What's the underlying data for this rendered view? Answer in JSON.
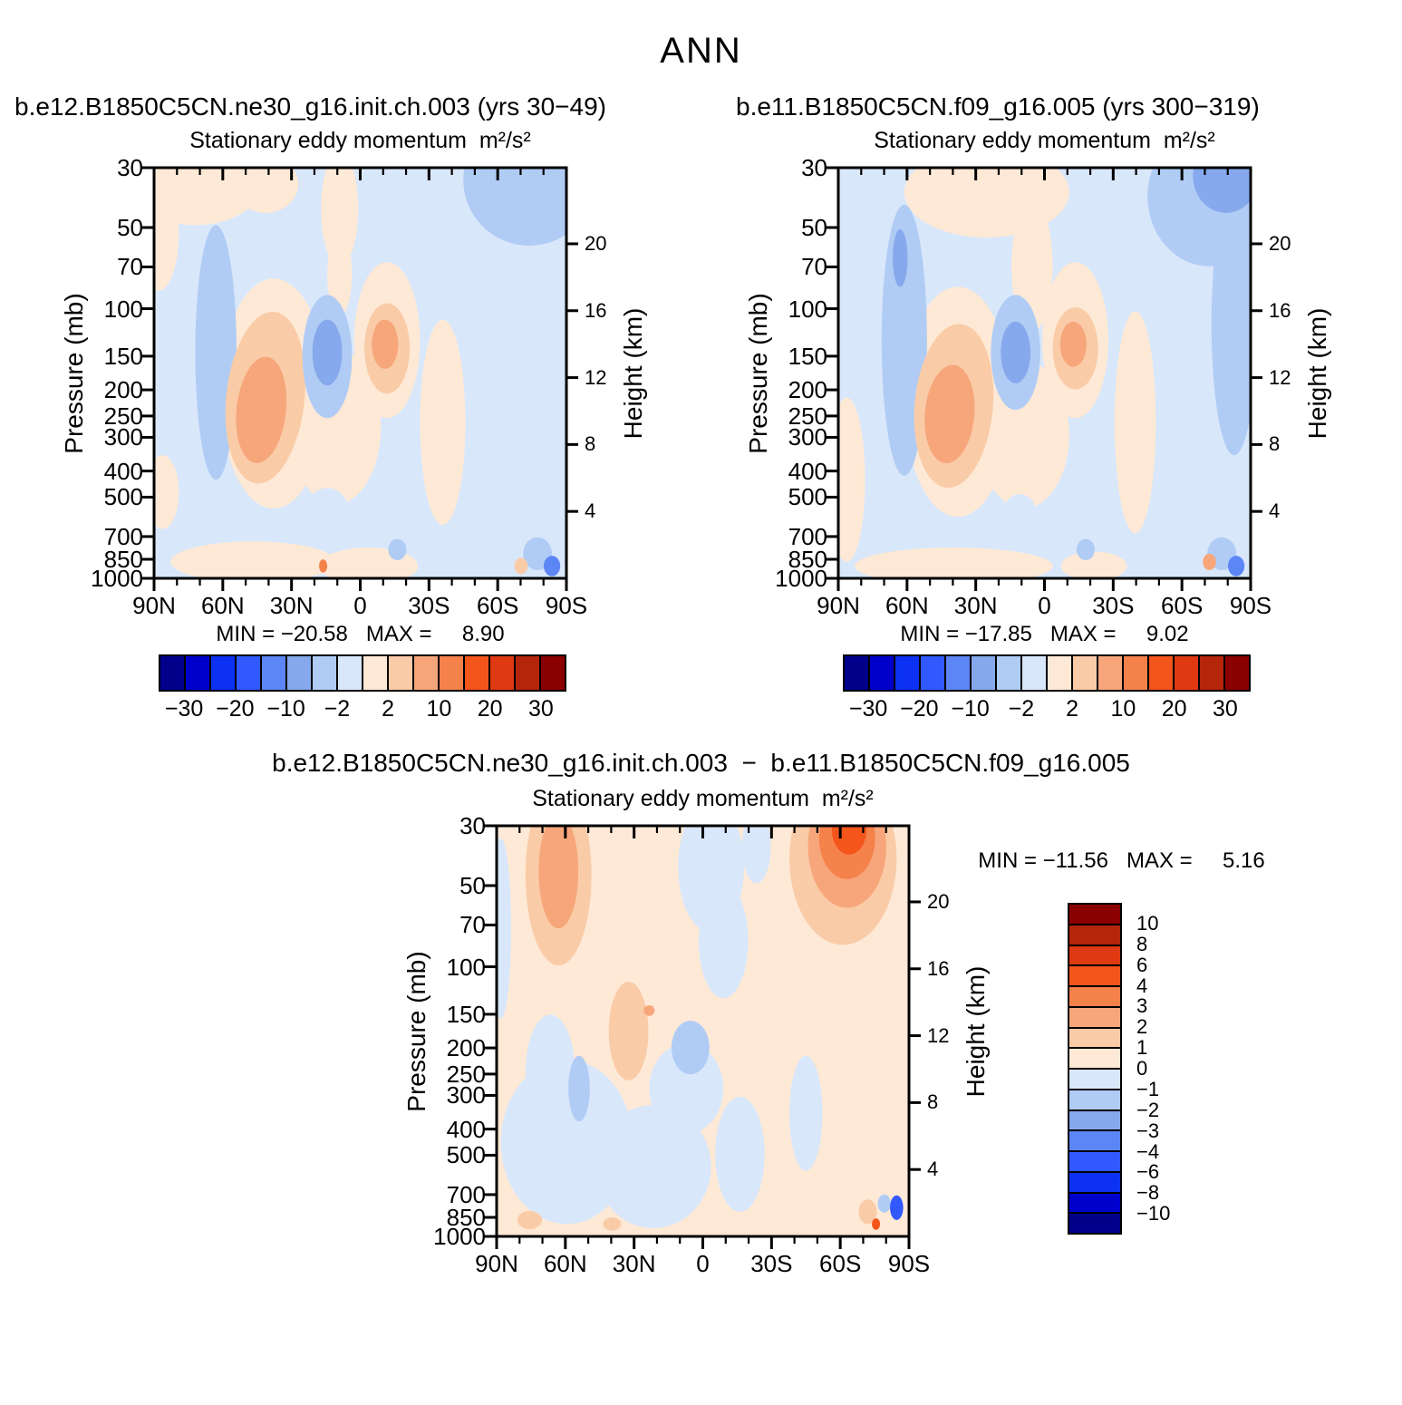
{
  "chart_data": {
    "type": "contour",
    "suptitle": "ANN",
    "palette": [
      "#00008B",
      "#0000CD",
      "#0D31F2",
      "#3159FF",
      "#5C85F6",
      "#86A8EC",
      "#B0CCF5",
      "#D9E7FA",
      "#FDE9D6",
      "#FACBA7",
      "#F7A67B",
      "#F5814B",
      "#F4551B",
      "#DE3911",
      "#B42509",
      "#8B0000"
    ],
    "levels_main": [
      -30,
      -25,
      -20,
      -15,
      -10,
      -5,
      -2,
      0,
      2,
      5,
      10,
      15,
      20,
      25,
      30
    ],
    "levels_diff": [
      -10,
      -8,
      -6,
      -4,
      -3,
      -2,
      -1,
      0,
      1,
      2,
      3,
      4,
      6,
      8,
      10
    ],
    "axes": {
      "pressure_label": "Pressure (mb)",
      "pressure_ticks": [
        30,
        50,
        70,
        100,
        150,
        200,
        250,
        300,
        400,
        500,
        700,
        850,
        1000
      ],
      "pressure_scale": "log",
      "height_label": "Height (km)",
      "height_ticks": [
        20,
        16,
        12,
        8,
        4
      ],
      "lat_labels": [
        "90N",
        "60N",
        "30N",
        "0",
        "30S",
        "60S",
        "90S"
      ],
      "lat_minor_step_deg": 10
    },
    "colorbar_h_labels": [
      "−30",
      "−20",
      "−10",
      "−2",
      "2",
      "10",
      "20",
      "30"
    ],
    "colorbar_v_labels": [
      "10",
      "8",
      "6",
      "4",
      "3",
      "2",
      "1",
      "0",
      "−1",
      "−2",
      "−3",
      "−4",
      "−6",
      "−8",
      "−10"
    ],
    "panels": [
      {
        "key": "case1",
        "header": "b.e12.B1850C5CN.ne30_g16.init.ch.003 (yrs 30−49)",
        "subtitle": "Stationary eddy momentum  m²/s²",
        "min": -20.58,
        "max": 8.9,
        "min_max_text": "MIN = −20.58   MAX =     8.90",
        "bg": 7,
        "blobs": [
          [
            10,
            4,
            16,
            10,
            8,
            0
          ],
          [
            1,
            16,
            5,
            14,
            8,
            0
          ],
          [
            27,
            4,
            8,
            7,
            8,
            0
          ],
          [
            45,
            10,
            4.5,
            14,
            8,
            0
          ],
          [
            45,
            26,
            3,
            10,
            8,
            0
          ],
          [
            29,
            55,
            13,
            28,
            8,
            0
          ],
          [
            44,
            63,
            11,
            19,
            8,
            0
          ],
          [
            56.5,
            42,
            8,
            19,
            8,
            0
          ],
          [
            70,
            62,
            5.5,
            25,
            8,
            0
          ],
          [
            24,
            96,
            20,
            5,
            8,
            0
          ],
          [
            52,
            97,
            12,
            4.5,
            8,
            0
          ],
          [
            2,
            79,
            4,
            9,
            8,
            0
          ],
          [
            15,
            45,
            5,
            31,
            6,
            0
          ],
          [
            91,
            3,
            16,
            16,
            6,
            0
          ],
          [
            27,
            56,
            9.5,
            21,
            9,
            6
          ],
          [
            26,
            59,
            6,
            13,
            10,
            6
          ],
          [
            42,
            46,
            6,
            15,
            6,
            0
          ],
          [
            42,
            45,
            3.6,
            8,
            5,
            0
          ],
          [
            56.5,
            44,
            5.5,
            11,
            9,
            0
          ],
          [
            56,
            43,
            3.2,
            6,
            10,
            0
          ],
          [
            42,
            83,
            5,
            5,
            7,
            0
          ],
          [
            59,
            93,
            2.2,
            2.6,
            6,
            0
          ],
          [
            93,
            94,
            3.5,
            4,
            6,
            0
          ],
          [
            96.5,
            97,
            2,
            2.5,
            4,
            0
          ],
          [
            89,
            97,
            1.6,
            2,
            9,
            0
          ],
          [
            41,
            97,
            1,
            1.6,
            11,
            0
          ]
        ]
      },
      {
        "key": "case2",
        "header": "b.e11.B1850C5CN.f09_g16.005 (yrs 300−319)",
        "subtitle": "Stationary eddy momentum  m²/s²",
        "min": -17.85,
        "max": 9.02,
        "min_max_text": "MIN = −17.85   MAX =     9.02",
        "bg": 7,
        "blobs": [
          [
            36,
            6,
            20,
            11,
            8,
            0
          ],
          [
            47,
            24,
            5,
            16,
            8,
            0
          ],
          [
            29,
            57,
            13,
            28,
            8,
            0
          ],
          [
            45,
            65,
            11,
            18,
            8,
            0
          ],
          [
            57.5,
            42,
            8,
            19,
            8,
            0
          ],
          [
            72,
            62,
            5,
            27,
            8,
            0
          ],
          [
            2,
            76,
            4.5,
            20,
            8,
            0
          ],
          [
            28,
            97,
            24,
            4.5,
            8,
            0
          ],
          [
            62,
            97,
            8,
            3.5,
            8,
            0
          ],
          [
            16,
            42,
            5.5,
            33,
            6,
            0
          ],
          [
            15,
            22,
            1.8,
            7,
            5,
            0
          ],
          [
            90,
            7,
            15,
            17,
            6,
            0
          ],
          [
            96,
            38,
            5.5,
            32,
            6,
            0
          ],
          [
            94,
            2,
            8,
            9,
            5,
            0
          ],
          [
            28,
            58,
            9.5,
            20,
            9,
            5
          ],
          [
            27,
            60,
            6,
            12,
            10,
            5
          ],
          [
            43,
            45,
            6,
            14,
            6,
            0
          ],
          [
            43,
            45,
            3.6,
            7.5,
            5,
            0
          ],
          [
            57.5,
            44,
            5.5,
            10,
            9,
            0
          ],
          [
            57,
            43,
            3.2,
            5.5,
            10,
            0
          ],
          [
            44,
            84,
            4,
            4.5,
            7,
            0
          ],
          [
            60,
            93,
            2.2,
            2.6,
            6,
            0
          ],
          [
            93,
            94,
            3.5,
            4,
            6,
            0
          ],
          [
            96.5,
            97,
            2,
            2.5,
            4,
            0
          ],
          [
            90,
            96,
            1.6,
            2,
            10,
            0
          ]
        ]
      },
      {
        "key": "diff",
        "header": "b.e12.B1850C5CN.ne30_g16.init.ch.003  −  b.e11.B1850C5CN.f09_g16.005",
        "subtitle": "Stationary eddy momentum  m²/s²",
        "min": -11.56,
        "max": 5.16,
        "min_max_text": "MIN = −11.56   MAX =     5.16",
        "bg": 8,
        "blobs": [
          [
            1,
            25,
            2.5,
            22,
            7,
            0
          ],
          [
            52,
            10,
            8,
            16,
            7,
            0
          ],
          [
            55,
            28,
            6,
            14,
            7,
            0
          ],
          [
            63,
            5,
            3.5,
            9,
            7,
            0
          ],
          [
            17,
            77,
            16,
            20,
            7,
            0
          ],
          [
            13,
            60,
            6,
            14,
            7,
            0
          ],
          [
            38,
            83,
            14,
            15,
            7,
            0
          ],
          [
            46,
            64,
            9,
            11,
            7,
            0
          ],
          [
            59,
            80,
            6,
            14,
            7,
            0
          ],
          [
            75,
            70,
            4,
            14,
            7,
            0
          ],
          [
            15,
            12,
            8,
            22,
            9,
            0
          ],
          [
            15,
            11,
            4.8,
            14,
            10,
            0
          ],
          [
            84,
            8,
            13,
            21,
            9,
            0
          ],
          [
            85,
            5,
            9.5,
            15,
            10,
            0
          ],
          [
            85,
            3,
            6.8,
            10,
            11,
            0
          ],
          [
            85.5,
            1,
            4.2,
            6,
            12,
            0
          ],
          [
            32,
            50,
            4.8,
            12,
            9,
            0
          ],
          [
            37,
            45,
            1.3,
            1.3,
            10,
            0
          ],
          [
            20,
            64,
            2.6,
            8,
            6,
            0
          ],
          [
            47,
            54,
            4.6,
            6.5,
            6,
            0
          ],
          [
            8,
            96,
            3,
            2.2,
            9,
            0
          ],
          [
            28,
            97,
            2.2,
            1.6,
            9,
            0
          ],
          [
            90,
            94,
            2.2,
            3,
            9,
            0
          ],
          [
            94,
            92,
            1.6,
            2.2,
            6,
            0
          ],
          [
            97,
            93,
            1.6,
            3,
            3,
            0
          ],
          [
            92,
            97,
            1,
            1.4,
            12,
            0
          ]
        ]
      }
    ]
  }
}
